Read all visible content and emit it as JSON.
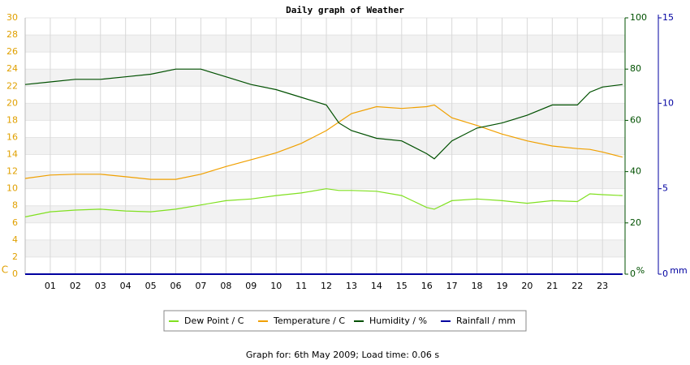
{
  "chart_data": {
    "type": "line",
    "title": "Daily graph of Weather",
    "footer": "Graph for: 6th May 2009; Load time: 0.06 s",
    "ylabel": "C",
    "y2label": "%",
    "y3label": "mm",
    "x": [
      0,
      1,
      2,
      3,
      4,
      5,
      6,
      7,
      8,
      9,
      10,
      11,
      12,
      12.5,
      13,
      14,
      15,
      16,
      16.3,
      17,
      18,
      19,
      20,
      21,
      22,
      22.5,
      23,
      23.8
    ],
    "xlim": [
      0,
      23.9
    ],
    "xticks": [
      {
        "value": 1,
        "label": "01"
      },
      {
        "value": 2,
        "label": "02"
      },
      {
        "value": 3,
        "label": "03"
      },
      {
        "value": 4,
        "label": "04"
      },
      {
        "value": 5,
        "label": "05"
      },
      {
        "value": 6,
        "label": "06"
      },
      {
        "value": 7,
        "label": "07"
      },
      {
        "value": 8,
        "label": "08"
      },
      {
        "value": 9,
        "label": "09"
      },
      {
        "value": 10,
        "label": "10"
      },
      {
        "value": 11,
        "label": "11"
      },
      {
        "value": 12,
        "label": "12"
      },
      {
        "value": 13,
        "label": "13"
      },
      {
        "value": 14,
        "label": "14"
      },
      {
        "value": 15,
        "label": "15"
      },
      {
        "value": 16,
        "label": "16"
      },
      {
        "value": 17,
        "label": "17"
      },
      {
        "value": 18,
        "label": "18"
      },
      {
        "value": 19,
        "label": "19"
      },
      {
        "value": 20,
        "label": "20"
      },
      {
        "value": 21,
        "label": "21"
      },
      {
        "value": 22,
        "label": "22"
      },
      {
        "value": 23,
        "label": "23"
      }
    ],
    "ylim": [
      0,
      30
    ],
    "yticks": [
      0,
      2,
      4,
      6,
      8,
      10,
      12,
      14,
      16,
      18,
      20,
      22,
      24,
      26,
      28,
      30
    ],
    "y2lim": [
      0,
      100
    ],
    "y2ticks": [
      0,
      20,
      40,
      60,
      80,
      100
    ],
    "y3lim": [
      0,
      15
    ],
    "y3ticks": [
      0,
      5,
      10,
      15
    ],
    "grid": true,
    "legend": "bottom",
    "series": [
      {
        "name": "Dew Point / C",
        "color": "#80e020",
        "values": [
          6.7,
          7.3,
          7.5,
          7.6,
          7.4,
          7.3,
          7.6,
          8.1,
          8.6,
          8.8,
          9.2,
          9.5,
          10.0,
          9.8,
          9.8,
          9.7,
          9.2,
          7.8,
          7.6,
          8.6,
          8.8,
          8.6,
          8.3,
          8.6,
          8.5,
          9.4,
          9.3,
          9.2
        ]
      },
      {
        "name": "Temperature / C",
        "color": "#f0a000",
        "values": [
          11.2,
          11.6,
          11.7,
          11.7,
          11.4,
          11.1,
          11.1,
          11.7,
          12.6,
          13.4,
          14.2,
          15.3,
          16.8,
          17.8,
          18.8,
          19.6,
          19.4,
          19.6,
          19.8,
          18.3,
          17.4,
          16.4,
          15.6,
          15.0,
          14.7,
          14.6,
          14.3,
          13.7
        ]
      },
      {
        "name": "Humidity / %",
        "color": "#005000",
        "axis": "y2",
        "values": [
          74,
          75,
          76,
          76,
          77,
          78,
          80,
          80,
          77,
          74,
          72,
          69,
          66,
          59,
          56,
          53,
          52,
          47,
          45,
          52,
          57,
          59,
          62,
          66,
          66,
          71,
          73,
          74
        ]
      },
      {
        "name": "Rainfall / mm",
        "color": "#0000a0",
        "axis": "y3",
        "values": [
          0,
          0,
          0,
          0,
          0,
          0,
          0,
          0,
          0,
          0,
          0,
          0,
          0,
          0,
          0,
          0,
          0,
          0,
          0,
          0,
          0,
          0,
          0,
          0,
          0,
          0,
          0,
          0
        ]
      }
    ]
  }
}
